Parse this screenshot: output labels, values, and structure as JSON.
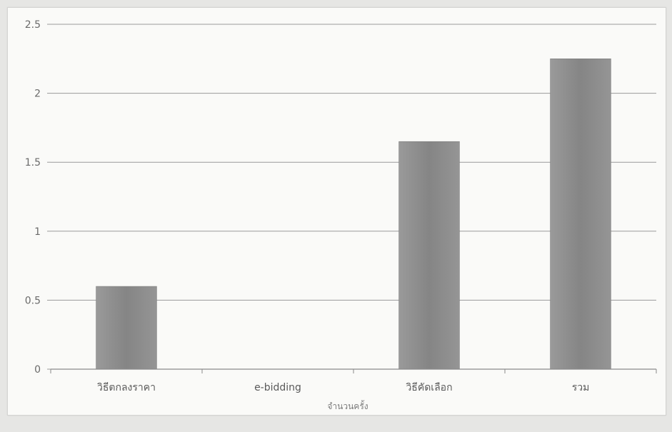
{
  "chart_data": {
    "type": "bar",
    "title": "",
    "xlabel": "จำนวนครั้ง",
    "ylabel": "",
    "categories": [
      "วิธีตกลงราคา",
      "e-bidding",
      "วิธีคัดเลือก",
      "รวม"
    ],
    "values": [
      0.6,
      0,
      1.65,
      2.25
    ],
    "ylim": [
      0,
      2.5
    ],
    "yticks": [
      "0",
      "0.5",
      "1",
      "1.5",
      "2",
      "2.5"
    ],
    "grid": true,
    "legend": "none",
    "bar_color": "#8a8a8a",
    "grid_color": "#9a9a9a"
  }
}
